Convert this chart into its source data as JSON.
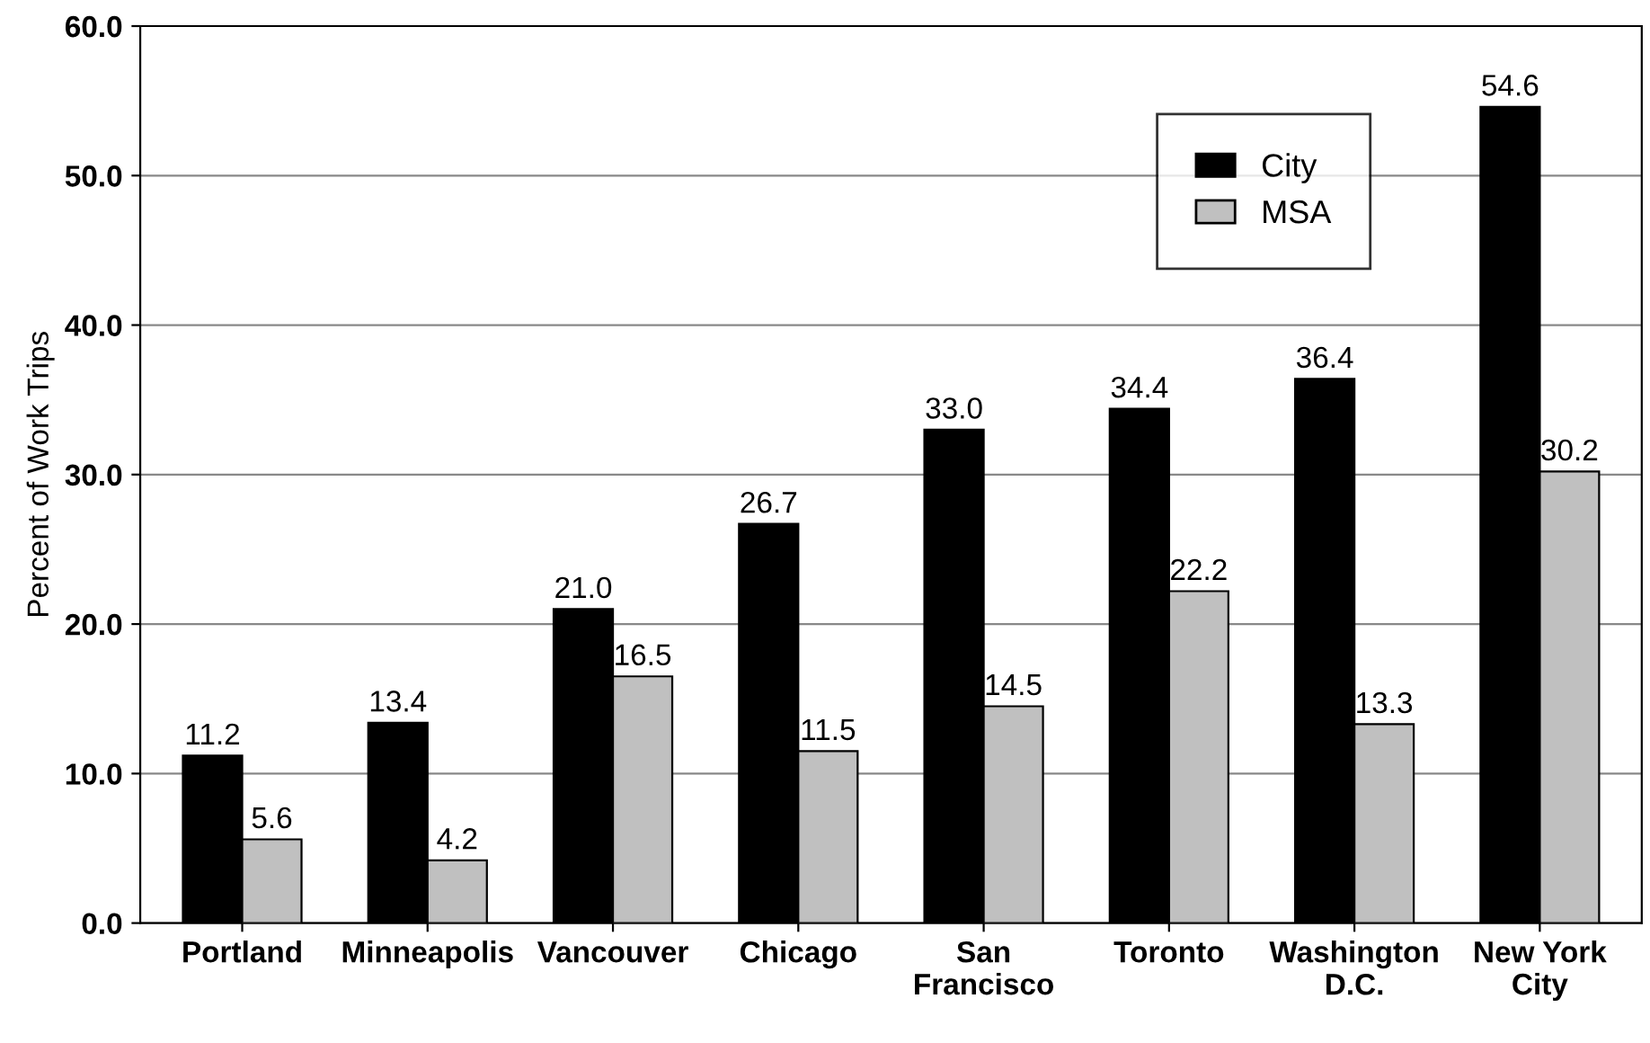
{
  "chart_data": {
    "type": "bar",
    "ylabel": "Percent of Work Trips",
    "categories": [
      "Portland",
      "Minneapolis",
      "Vancouver",
      "Chicago",
      "San\nFrancisco",
      "Toronto",
      "Washington\nD.C.",
      "New York\nCity"
    ],
    "series": [
      {
        "name": "City",
        "color": "#000000",
        "values": [
          11.2,
          13.4,
          21.0,
          26.7,
          33.0,
          34.4,
          36.4,
          54.6
        ],
        "value_labels": [
          "11.2",
          "13.4",
          "21.0",
          "26.7",
          "33.0",
          "34.4",
          "36.4",
          "54.6"
        ]
      },
      {
        "name": "MSA",
        "color": "#c0c0c0",
        "values": [
          5.6,
          4.2,
          16.5,
          11.5,
          14.5,
          22.2,
          13.3,
          30.2
        ],
        "value_labels": [
          "5.6",
          "4.2",
          "16.5",
          "11.5",
          "14.5",
          "22.2",
          "13.3",
          "30.2"
        ]
      }
    ],
    "ylim": [
      0,
      60
    ],
    "yticks": [
      {
        "value": 0,
        "label": "0.0"
      },
      {
        "value": 10,
        "label": "10.0"
      },
      {
        "value": 20,
        "label": "20.0"
      },
      {
        "value": 30,
        "label": "30.0"
      },
      {
        "value": 40,
        "label": "40.0"
      },
      {
        "value": 50,
        "label": "50.0"
      },
      {
        "value": 60,
        "label": "60.0"
      }
    ],
    "grid": "y",
    "legend": "top right"
  }
}
